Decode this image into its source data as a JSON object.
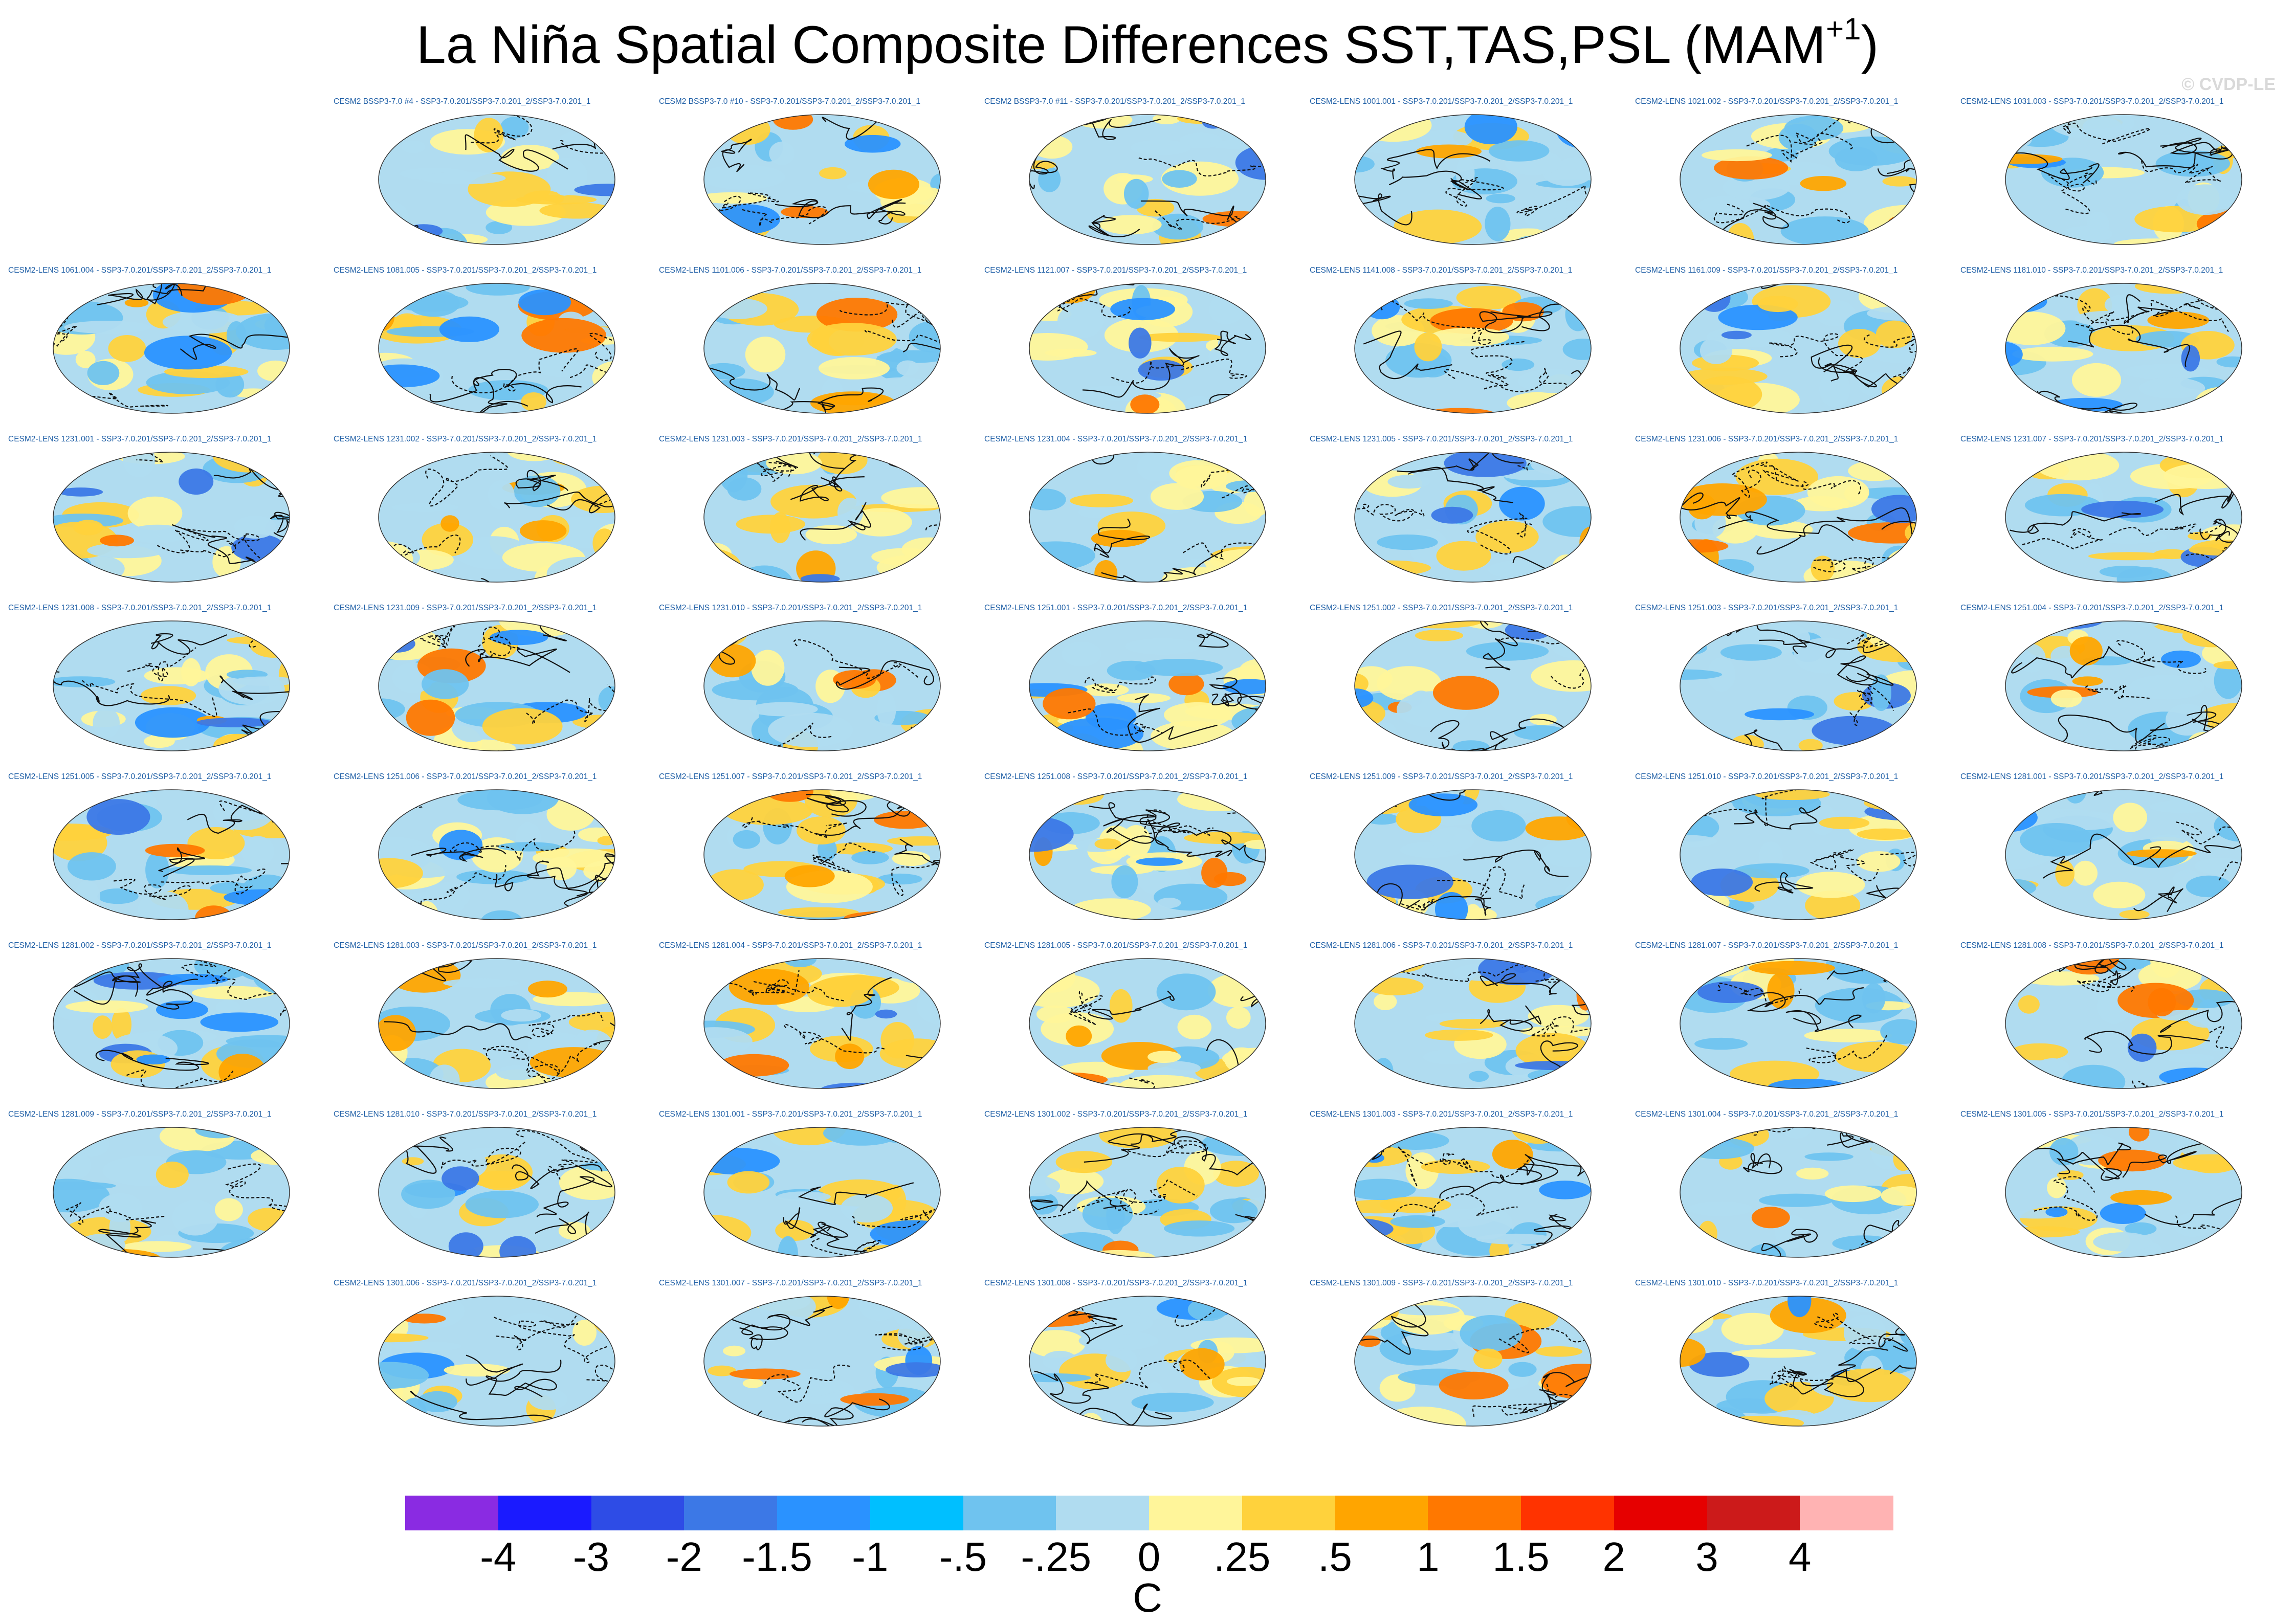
{
  "title": "La Niña Spatial Composite Differences SST,TAS,PSL (MAM",
  "title_sup": "+1",
  "title_close": ")",
  "watermark": "© CVDP-LE",
  "chart_data": {
    "type": "heatmap",
    "description_type": "small-multiple global map panels",
    "variables": [
      "SST",
      "TAS",
      "PSL"
    ],
    "season": "MAM+1",
    "contour_overlay": "PSL",
    "colorbar": {
      "units": "C",
      "tick_labels": [
        "-4",
        "-3",
        "-2",
        "-1.5",
        "-1",
        "-.5",
        "-.25",
        "0",
        ".25",
        ".5",
        "1",
        "1.5",
        "2",
        "3",
        "4"
      ],
      "colors": [
        "#8a2be2",
        "#1a1aff",
        "#2e4ce6",
        "#3c78e6",
        "#2a92ff",
        "#00bfff",
        "#6fc3ef",
        "#b0dcf0",
        "#fff59a",
        "#ffd23c",
        "#ffa500",
        "#ff7800",
        "#ff3300",
        "#e60000",
        "#cc1a1a",
        "#ffb3b3"
      ]
    },
    "panels": [
      {
        "label": "CESM2 BSSP3-7.0 #4 - SSP3-7.0.201/SSP3-7.0.201_2/SSP3-7.0.201_1"
      },
      {
        "label": "CESM2 BSSP3-7.0 #10 - SSP3-7.0.201/SSP3-7.0.201_2/SSP3-7.0.201_1"
      },
      {
        "label": "CESM2 BSSP3-7.0 #11 - SSP3-7.0.201/SSP3-7.0.201_2/SSP3-7.0.201_1"
      },
      {
        "label": "CESM2-LENS 1001.001 - SSP3-7.0.201/SSP3-7.0.201_2/SSP3-7.0.201_1"
      },
      {
        "label": "CESM2-LENS 1021.002 - SSP3-7.0.201/SSP3-7.0.201_2/SSP3-7.0.201_1"
      },
      {
        "label": "CESM2-LENS 1031.003 - SSP3-7.0.201/SSP3-7.0.201_2/SSP3-7.0.201_1"
      },
      {
        "label": "CESM2-LENS 1061.004 - SSP3-7.0.201/SSP3-7.0.201_2/SSP3-7.0.201_1"
      },
      {
        "label": "CESM2-LENS 1081.005 - SSP3-7.0.201/SSP3-7.0.201_2/SSP3-7.0.201_1"
      },
      {
        "label": "CESM2-LENS 1101.006 - SSP3-7.0.201/SSP3-7.0.201_2/SSP3-7.0.201_1"
      },
      {
        "label": "CESM2-LENS 1121.007 - SSP3-7.0.201/SSP3-7.0.201_2/SSP3-7.0.201_1"
      },
      {
        "label": "CESM2-LENS 1141.008 - SSP3-7.0.201/SSP3-7.0.201_2/SSP3-7.0.201_1"
      },
      {
        "label": "CESM2-LENS 1161.009 - SSP3-7.0.201/SSP3-7.0.201_2/SSP3-7.0.201_1"
      },
      {
        "label": "CESM2-LENS 1181.010 - SSP3-7.0.201/SSP3-7.0.201_2/SSP3-7.0.201_1"
      },
      {
        "label": "CESM2-LENS 1231.001 - SSP3-7.0.201/SSP3-7.0.201_2/SSP3-7.0.201_1"
      },
      {
        "label": "CESM2-LENS 1231.002 - SSP3-7.0.201/SSP3-7.0.201_2/SSP3-7.0.201_1"
      },
      {
        "label": "CESM2-LENS 1231.003 - SSP3-7.0.201/SSP3-7.0.201_2/SSP3-7.0.201_1"
      },
      {
        "label": "CESM2-LENS 1231.004 - SSP3-7.0.201/SSP3-7.0.201_2/SSP3-7.0.201_1"
      },
      {
        "label": "CESM2-LENS 1231.005 - SSP3-7.0.201/SSP3-7.0.201_2/SSP3-7.0.201_1"
      },
      {
        "label": "CESM2-LENS 1231.006 - SSP3-7.0.201/SSP3-7.0.201_2/SSP3-7.0.201_1"
      },
      {
        "label": "CESM2-LENS 1231.007 - SSP3-7.0.201/SSP3-7.0.201_2/SSP3-7.0.201_1"
      },
      {
        "label": "CESM2-LENS 1231.008 - SSP3-7.0.201/SSP3-7.0.201_2/SSP3-7.0.201_1"
      },
      {
        "label": "CESM2-LENS 1231.009 - SSP3-7.0.201/SSP3-7.0.201_2/SSP3-7.0.201_1"
      },
      {
        "label": "CESM2-LENS 1231.010 - SSP3-7.0.201/SSP3-7.0.201_2/SSP3-7.0.201_1"
      },
      {
        "label": "CESM2-LENS 1251.001 - SSP3-7.0.201/SSP3-7.0.201_2/SSP3-7.0.201_1"
      },
      {
        "label": "CESM2-LENS 1251.002 - SSP3-7.0.201/SSP3-7.0.201_2/SSP3-7.0.201_1"
      },
      {
        "label": "CESM2-LENS 1251.003 - SSP3-7.0.201/SSP3-7.0.201_2/SSP3-7.0.201_1"
      },
      {
        "label": "CESM2-LENS 1251.004 - SSP3-7.0.201/SSP3-7.0.201_2/SSP3-7.0.201_1"
      },
      {
        "label": "CESM2-LENS 1251.005 - SSP3-7.0.201/SSP3-7.0.201_2/SSP3-7.0.201_1"
      },
      {
        "label": "CESM2-LENS 1251.006 - SSP3-7.0.201/SSP3-7.0.201_2/SSP3-7.0.201_1"
      },
      {
        "label": "CESM2-LENS 1251.007 - SSP3-7.0.201/SSP3-7.0.201_2/SSP3-7.0.201_1"
      },
      {
        "label": "CESM2-LENS 1251.008 - SSP3-7.0.201/SSP3-7.0.201_2/SSP3-7.0.201_1"
      },
      {
        "label": "CESM2-LENS 1251.009 - SSP3-7.0.201/SSP3-7.0.201_2/SSP3-7.0.201_1"
      },
      {
        "label": "CESM2-LENS 1251.010 - SSP3-7.0.201/SSP3-7.0.201_2/SSP3-7.0.201_1"
      },
      {
        "label": "CESM2-LENS 1281.001 - SSP3-7.0.201/SSP3-7.0.201_2/SSP3-7.0.201_1"
      },
      {
        "label": "CESM2-LENS 1281.002 - SSP3-7.0.201/SSP3-7.0.201_2/SSP3-7.0.201_1"
      },
      {
        "label": "CESM2-LENS 1281.003 - SSP3-7.0.201/SSP3-7.0.201_2/SSP3-7.0.201_1"
      },
      {
        "label": "CESM2-LENS 1281.004 - SSP3-7.0.201/SSP3-7.0.201_2/SSP3-7.0.201_1"
      },
      {
        "label": "CESM2-LENS 1281.005 - SSP3-7.0.201/SSP3-7.0.201_2/SSP3-7.0.201_1"
      },
      {
        "label": "CESM2-LENS 1281.006 - SSP3-7.0.201/SSP3-7.0.201_2/SSP3-7.0.201_1"
      },
      {
        "label": "CESM2-LENS 1281.007 - SSP3-7.0.201/SSP3-7.0.201_2/SSP3-7.0.201_1"
      },
      {
        "label": "CESM2-LENS 1281.008 - SSP3-7.0.201/SSP3-7.0.201_2/SSP3-7.0.201_1"
      },
      {
        "label": "CESM2-LENS 1281.009 - SSP3-7.0.201/SSP3-7.0.201_2/SSP3-7.0.201_1"
      },
      {
        "label": "CESM2-LENS 1281.010 - SSP3-7.0.201/SSP3-7.0.201_2/SSP3-7.0.201_1"
      },
      {
        "label": "CESM2-LENS 1301.001 - SSP3-7.0.201/SSP3-7.0.201_2/SSP3-7.0.201_1"
      },
      {
        "label": "CESM2-LENS 1301.002 - SSP3-7.0.201/SSP3-7.0.201_2/SSP3-7.0.201_1"
      },
      {
        "label": "CESM2-LENS 1301.003 - SSP3-7.0.201/SSP3-7.0.201_2/SSP3-7.0.201_1"
      },
      {
        "label": "CESM2-LENS 1301.004 - SSP3-7.0.201/SSP3-7.0.201_2/SSP3-7.0.201_1"
      },
      {
        "label": "CESM2-LENS 1301.005 - SSP3-7.0.201/SSP3-7.0.201_2/SSP3-7.0.201_1"
      },
      {
        "label": "CESM2-LENS 1301.006 - SSP3-7.0.201/SSP3-7.0.201_2/SSP3-7.0.201_1"
      },
      {
        "label": "CESM2-LENS 1301.007 - SSP3-7.0.201/SSP3-7.0.201_2/SSP3-7.0.201_1"
      },
      {
        "label": "CESM2-LENS 1301.008 - SSP3-7.0.201/SSP3-7.0.201_2/SSP3-7.0.201_1"
      },
      {
        "label": "CESM2-LENS 1301.009 - SSP3-7.0.201/SSP3-7.0.201_2/SSP3-7.0.201_1"
      },
      {
        "label": "CESM2-LENS 1301.010 - SSP3-7.0.201/SSP3-7.0.201_2/SSP3-7.0.201_1"
      }
    ]
  }
}
